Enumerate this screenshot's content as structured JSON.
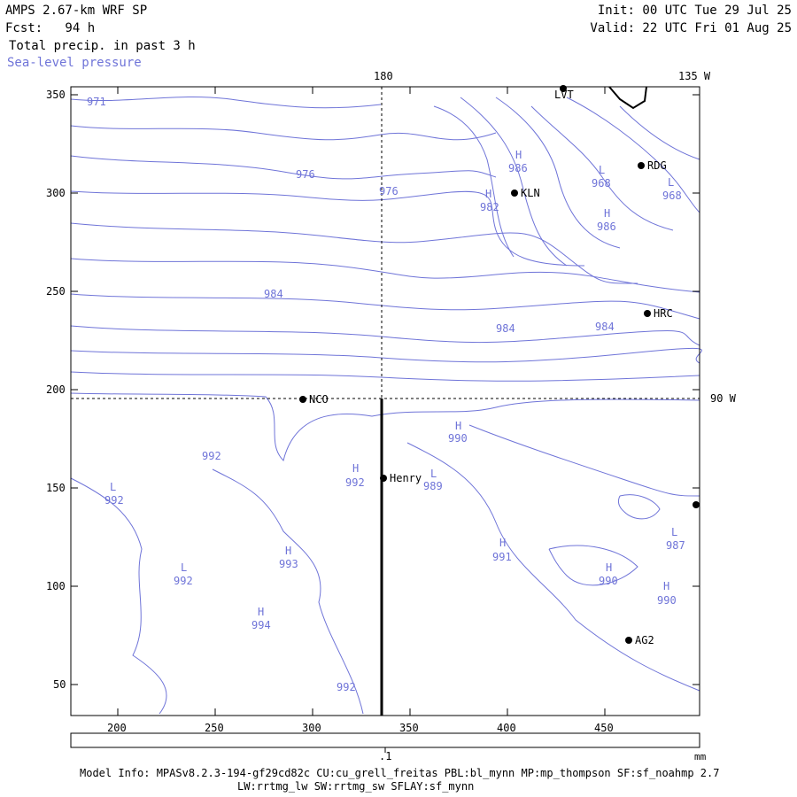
{
  "header": {
    "title": "AMPS 2.67-km WRF SP",
    "forecast": "Fcst:   94 h",
    "field1": "Total precip. in past 3 h",
    "field2": "Sea-level pressure",
    "init": "Init: 00 UTC Tue 29 Jul 25",
    "valid": "Valid: 22 UTC Fri 01 Aug 25"
  },
  "map": {
    "x_ticks": [
      "200",
      "250",
      "300",
      "350",
      "400",
      "450"
    ],
    "y_ticks": [
      "350",
      "300",
      "250",
      "200",
      "150",
      "100",
      "50"
    ],
    "meridian_labels": [
      "180",
      "135 W"
    ],
    "parallel_label": "90 W",
    "stations": [
      {
        "name": "LVT"
      },
      {
        "name": "RDG"
      },
      {
        "name": "KLN"
      },
      {
        "name": "HRC"
      },
      {
        "name": "NCO"
      },
      {
        "name": "Henry"
      },
      {
        "name": "AG2"
      },
      {
        "name": ""
      }
    ],
    "contour_labels": [
      "971",
      "976",
      "976",
      "984",
      "984",
      "984",
      "992",
      "992",
      "992",
      "992",
      "992",
      "993",
      "994",
      "990",
      "989",
      "991",
      "990",
      "990",
      "987",
      "982",
      "986",
      "968",
      "968",
      "986"
    ],
    "centers": [
      "H",
      "H",
      "H",
      "H",
      "H",
      "H",
      "H",
      "H",
      "H",
      "L",
      "L",
      "L",
      "L",
      "L",
      "L"
    ]
  },
  "colorbar": {
    "tick_label": ".1",
    "units": "mm"
  },
  "footer": {
    "line1": "Model Info: MPASv8.2.3-194-gf29cd82c CU:cu_grell_freitas PBL:bl_mynn MP:mp_thompson SF:sf_noahmp 2.7",
    "line2": "LW:rrtmg_lw SW:rrtmg_sw SFLAY:sf_mynn"
  },
  "colors": {
    "contour": "#6f74d8",
    "frame": "#000000"
  }
}
